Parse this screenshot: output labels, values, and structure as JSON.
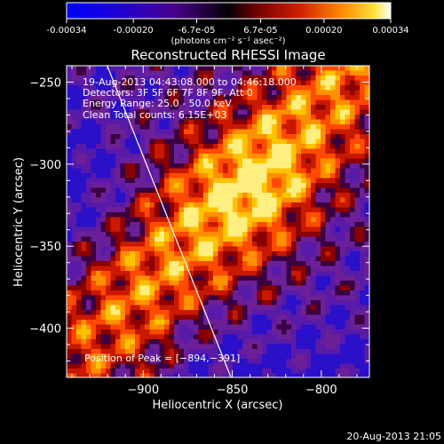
{
  "colorbar": {
    "tick_labels": [
      "-0.00034",
      "-0.00020",
      "-6.7e-05",
      "6.7e-05",
      "0.00020",
      "0.00034"
    ],
    "tick_values": [
      -0.00034,
      -0.0002,
      -6.7e-05,
      6.7e-05,
      0.0002,
      0.00034
    ],
    "range": [
      -0.00034,
      0.00034
    ],
    "unit_label": "(photons cm⁻² s⁻¹ asec⁻²)",
    "colors": {
      "low": "#0000ff",
      "low_mid": "#3a00a8",
      "mid_dark": "#7a0000",
      "mid": "#ff4b00",
      "high": "#ffc400",
      "top": "#ffffff"
    }
  },
  "chart_data": {
    "type": "heatmap",
    "title": "Reconstructed RHESSI Image",
    "xlabel": "Heliocentric X (arcsec)",
    "ylabel": "Heliocentric Y (arcsec)",
    "xlim": [
      -943,
      -773
    ],
    "ylim": [
      -430,
      -240
    ],
    "x_ticks": [
      -900,
      -850,
      -800
    ],
    "x_tick_labels": [
      "−900",
      "−850",
      "−800"
    ],
    "y_ticks": [
      -250,
      -300,
      -350,
      -400
    ],
    "y_tick_labels": [
      "−250",
      "−300",
      "−350",
      "−400"
    ],
    "annotations": [
      "19‑Aug‑2013 04:43:08.000 to 04:46:18.000",
      "Detectors: 3F 5F 6F 7F 8F 9F, Att 0",
      "Energy Range: 25.0 ‑ 50.0 keV",
      "Clean    Total counts: 6.15E+03"
    ],
    "peak_label": "Position of Peak = [−894,−391]",
    "peak_position": [
      -894,
      -391
    ],
    "limb_line": [
      [
        -922,
        -235
      ],
      [
        -850,
        -432
      ]
    ]
  },
  "footer": {
    "timestamp": "20‑Aug‑2013 21:05"
  }
}
